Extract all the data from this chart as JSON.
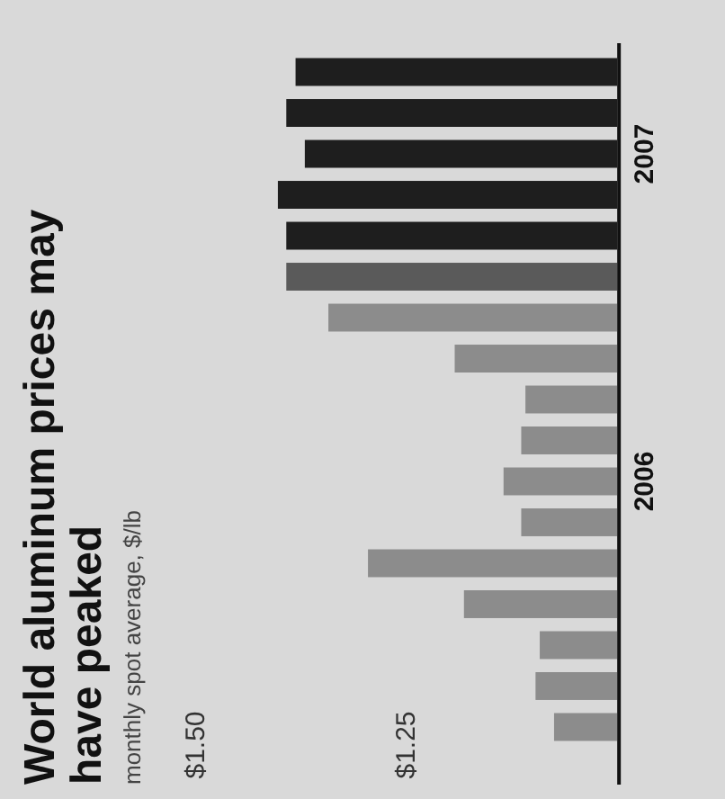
{
  "chart_data": {
    "type": "bar",
    "orientation": "horizontal",
    "title": "World aluminum prices may have peaked",
    "subtitle": "monthly spot average, $/lb",
    "categories": [
      null,
      null,
      "2007",
      null,
      null,
      null,
      null,
      null,
      null,
      null,
      "2006",
      null,
      null,
      null,
      null,
      null,
      null
    ],
    "values": [
      0.382,
      0.393,
      0.371,
      0.403,
      0.393,
      0.393,
      0.343,
      0.193,
      0.109,
      0.114,
      0.135,
      0.114,
      0.296,
      0.182,
      0.092,
      0.097,
      0.075
    ],
    "base": [
      1,
      1,
      1,
      1,
      1,
      1,
      1,
      1,
      1,
      1,
      1,
      1,
      1,
      1,
      1,
      1,
      1
    ],
    "colors": [
      "#1e1e1e",
      "#1e1e1e",
      "#1e1e1e",
      "#1e1e1e",
      "#1e1e1e",
      "#5a5a5a",
      "#8c8c8c",
      "#8c8c8c",
      "#8c8c8c",
      "#8c8c8c",
      "#8c8c8c",
      "#8c8c8c",
      "#8c8c8c",
      "#8c8c8c",
      "#8c8c8c",
      "#8c8c8c",
      "#8c8c8c"
    ],
    "xlim": [
      1.733,
      0.872
    ],
    "xticks": [
      {
        "value": 1.5,
        "label": "$1.50"
      },
      {
        "value": 1.25,
        "label": "$1.25"
      }
    ]
  }
}
